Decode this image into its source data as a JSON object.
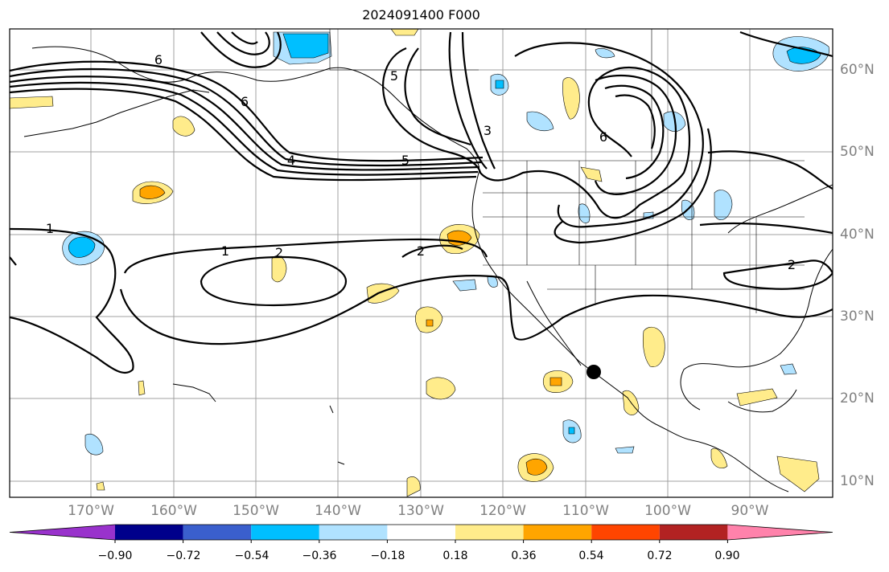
{
  "title": "2024091400 F000",
  "lat_labels": [
    "60°N",
    "50°N",
    "40°N",
    "30°N",
    "20°N",
    "10°N"
  ],
  "lon_labels": [
    "170°W",
    "160°W",
    "150°W",
    "140°W",
    "130°W",
    "120°W",
    "110°W",
    "100°W",
    "90°W"
  ],
  "contour_labels": [
    "6",
    "6",
    "4",
    "5",
    "5",
    "3",
    "6",
    "1",
    "1",
    "2",
    "2",
    "2"
  ],
  "colorbar": {
    "ticks": [
      "−0.90",
      "−0.72",
      "−0.54",
      "−0.36",
      "−0.18",
      "0.18",
      "0.36",
      "0.54",
      "0.72",
      "0.90"
    ],
    "colors": [
      "#9932cc",
      "#00008b",
      "#3a5fcd",
      "#00bfff",
      "#b0e2ff",
      "#ffffff",
      "#ffec8b",
      "#ffa500",
      "#ff4500",
      "#b22222",
      "#ff82ab"
    ]
  },
  "fill_colors": {
    "light_blue": "#b0e2ff",
    "blue": "#00bfff",
    "yellow": "#ffec8b",
    "orange": "#ffa500"
  }
}
